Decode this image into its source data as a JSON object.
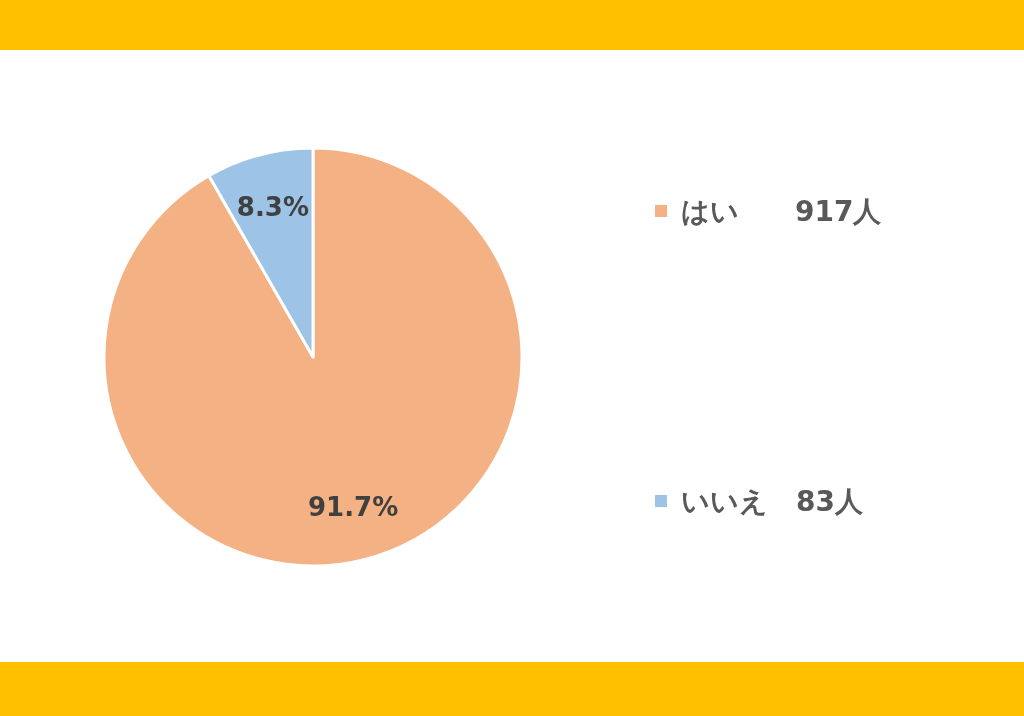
{
  "chart_data": {
    "type": "pie",
    "categories": [
      "はい　　917人",
      "いいえ　83人"
    ],
    "values": [
      91.7,
      8.3
    ],
    "colors": [
      "#f4b183",
      "#9dc3e6"
    ],
    "value_labels": [
      "91.7%",
      "8.3%"
    ],
    "legend": "right"
  }
}
